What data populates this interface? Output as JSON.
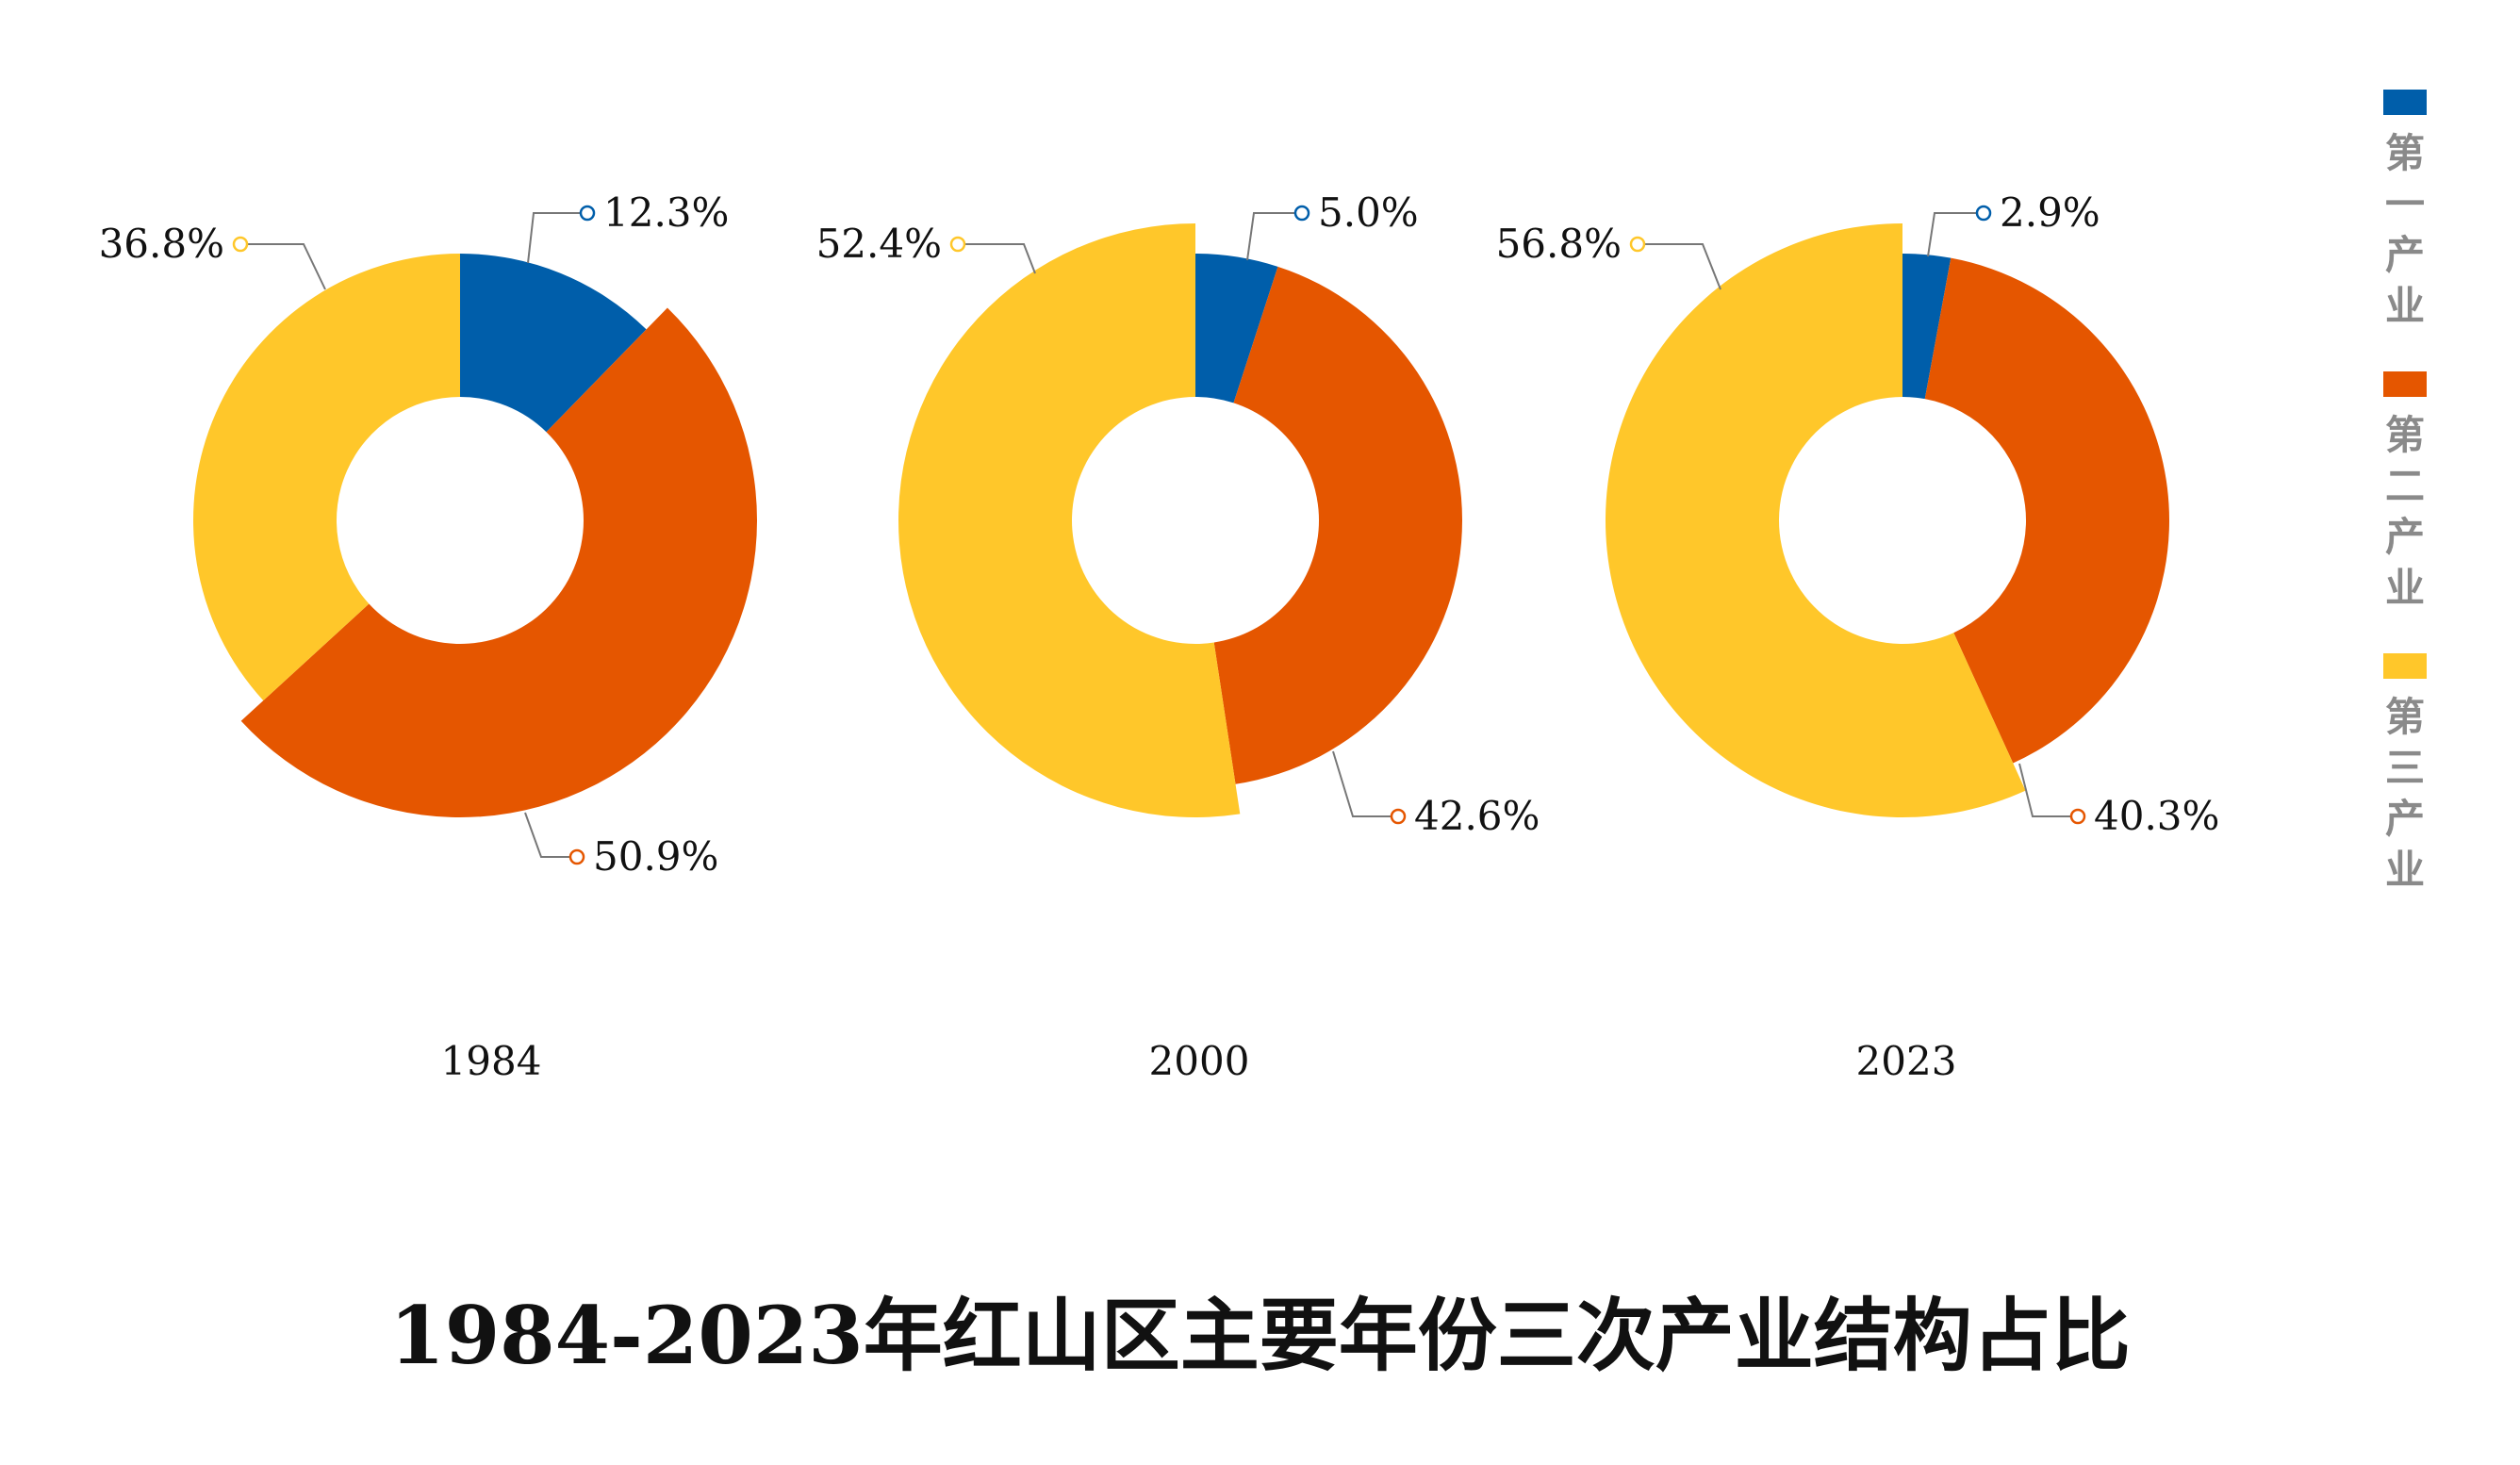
{
  "chart_data": {
    "type": "pie",
    "title": "1984-2023年红山区主要年份三次产业结构占比",
    "legend": {
      "position": "right",
      "entries": [
        "第一产业",
        "第二产业",
        "第三产业"
      ]
    },
    "colors": [
      "#005eaa",
      "#e55600",
      "#ffc72a"
    ],
    "charts": [
      {
        "year": "1984",
        "values": [
          12.3,
          50.9,
          36.8
        ],
        "labels": [
          "12.3%",
          "50.9%",
          "36.8%"
        ]
      },
      {
        "year": "2000",
        "values": [
          5.0,
          42.6,
          52.4
        ],
        "labels": [
          "5.0%",
          "42.6%",
          "52.4%"
        ]
      },
      {
        "year": "2023",
        "values": [
          2.9,
          40.3,
          56.8
        ],
        "labels": [
          "2.9%",
          "40.3%",
          "56.8%"
        ]
      }
    ]
  }
}
